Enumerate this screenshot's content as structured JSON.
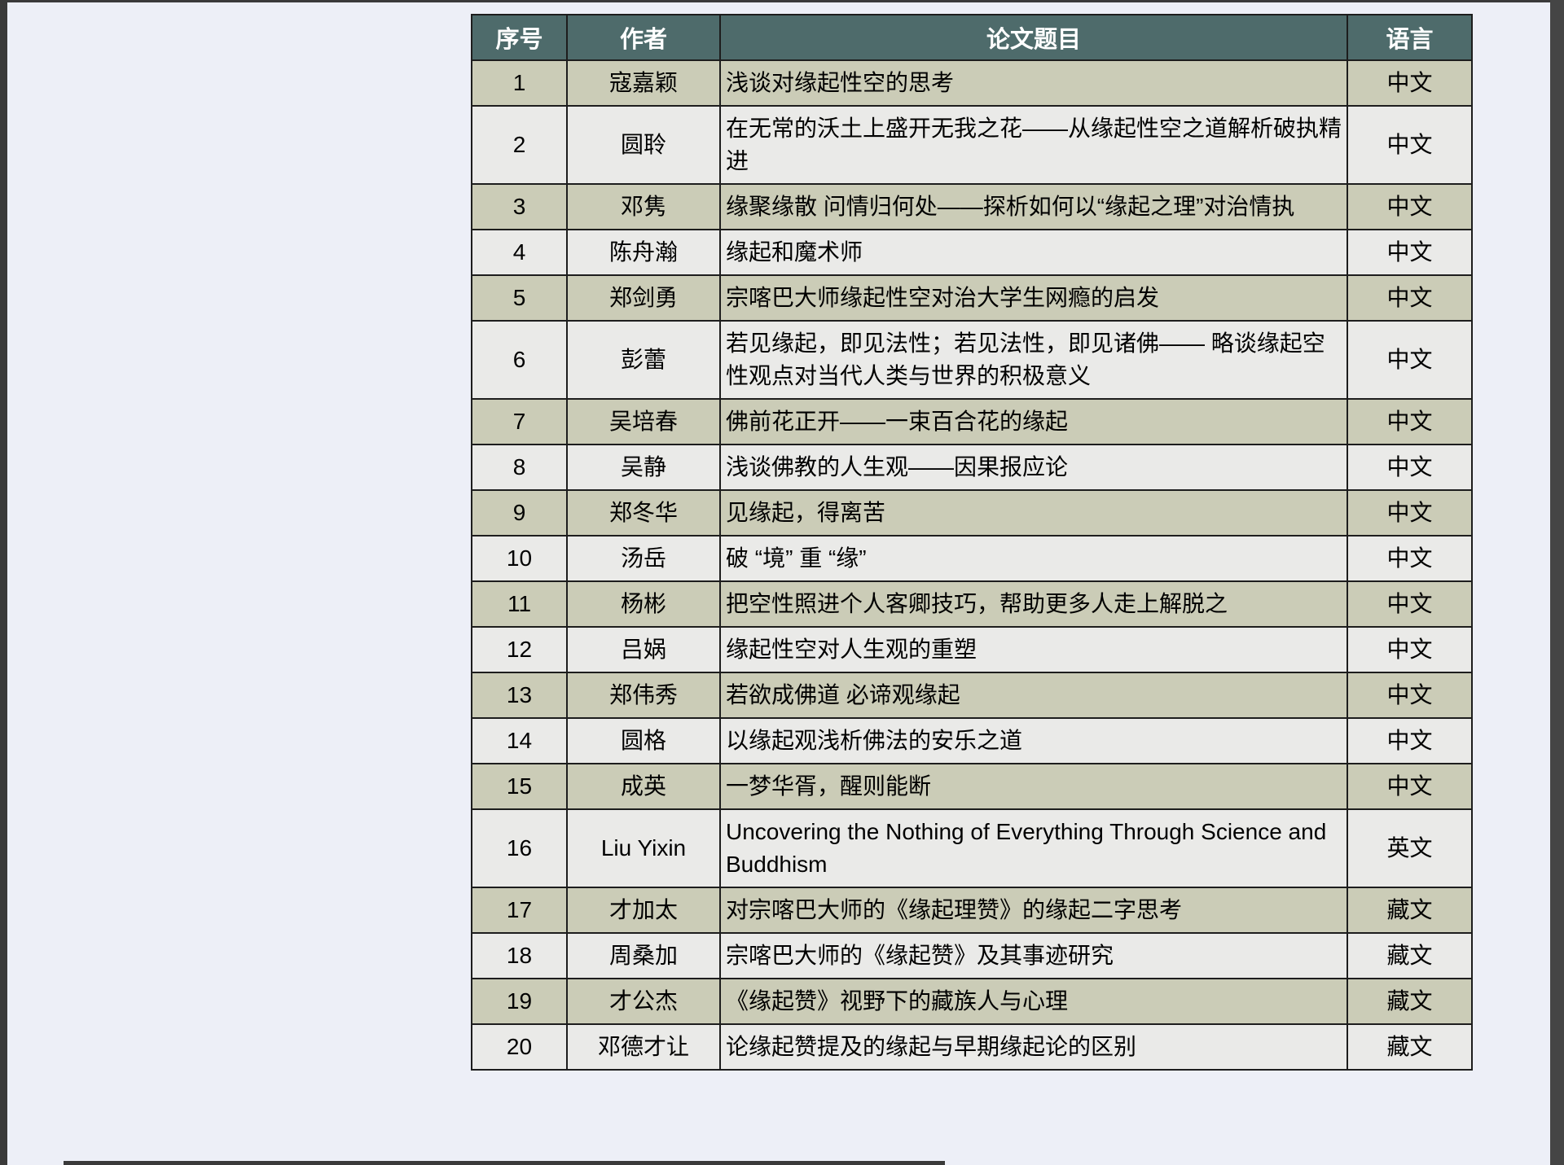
{
  "page": {
    "background": "#edeff7",
    "edge_color": "#3a3a3a"
  },
  "table": {
    "header_bg": "#4e6b6b",
    "row_bg_odd": "#cbccb7",
    "row_bg_even": "#eaeae8",
    "border_color": "#1d1d1d",
    "headers": [
      "序号",
      "作者",
      "论文题目",
      "语言"
    ],
    "rows": [
      {
        "no": "1",
        "author": "寇嘉颖",
        "title": "浅谈对缘起性空的思考",
        "lang": "中文"
      },
      {
        "no": "2",
        "author": "圆聆",
        "title": "在无常的沃土上盛开无我之花——从缘起性空之道解析破执精进",
        "lang": "中文"
      },
      {
        "no": "3",
        "author": "邓隽",
        "title": "缘聚缘散 问情归何处——探析如何以“缘起之理”对治情执",
        "lang": "中文"
      },
      {
        "no": "4",
        "author": "陈舟瀚",
        "title": "缘起和魔术师",
        "lang": "中文"
      },
      {
        "no": "5",
        "author": "郑剑勇",
        "title": "宗喀巴大师缘起性空对治大学生网瘾的启发",
        "lang": "中文"
      },
      {
        "no": "6",
        "author": "彭蕾",
        "title": "若见缘起，即见法性；若见法性，即见诸佛—— 略谈缘起空性观点对当代人类与世界的积极意义",
        "lang": "中文"
      },
      {
        "no": "7",
        "author": "吴培春",
        "title": "佛前花正开——一束百合花的缘起",
        "lang": "中文"
      },
      {
        "no": "8",
        "author": "吴静",
        "title": "浅谈佛教的人生观——因果报应论",
        "lang": "中文"
      },
      {
        "no": "9",
        "author": "郑冬华",
        "title": "见缘起，得离苦",
        "lang": "中文"
      },
      {
        "no": "10",
        "author": "汤岳",
        "title": "破 “境” 重 “缘”",
        "lang": "中文"
      },
      {
        "no": "11",
        "author": "杨彬",
        "title": "把空性照进个人客卿技巧，帮助更多人走上解脱之",
        "lang": "中文"
      },
      {
        "no": "12",
        "author": "吕娲",
        "title": "缘起性空对人生观的重塑",
        "lang": "中文"
      },
      {
        "no": "13",
        "author": "郑伟秀",
        "title": "若欲成佛道 必谛观缘起",
        "lang": "中文"
      },
      {
        "no": "14",
        "author": "圆格",
        "title": "以缘起观浅析佛法的安乐之道",
        "lang": "中文"
      },
      {
        "no": "15",
        "author": "成英",
        "title": "一梦华胥，醒则能断",
        "lang": "中文"
      },
      {
        "no": "16",
        "author": "Liu Yixin",
        "title": "Uncovering the Nothing of Everything Through Science and Buddhism",
        "lang": "英文"
      },
      {
        "no": "17",
        "author": "才加太",
        "title": "对宗喀巴大师的《缘起理赞》的缘起二字思考",
        "lang": "藏文"
      },
      {
        "no": "18",
        "author": "周桑加",
        "title": "宗喀巴大师的《缘起赞》及其事迹研究",
        "lang": "藏文"
      },
      {
        "no": "19",
        "author": "才公杰",
        "title": "《缘起赞》视野下的藏族人与心理",
        "lang": "藏文"
      },
      {
        "no": "20",
        "author": "邓德才让",
        "title": "论缘起赞提及的缘起与早期缘起论的区别",
        "lang": "藏文"
      }
    ]
  }
}
